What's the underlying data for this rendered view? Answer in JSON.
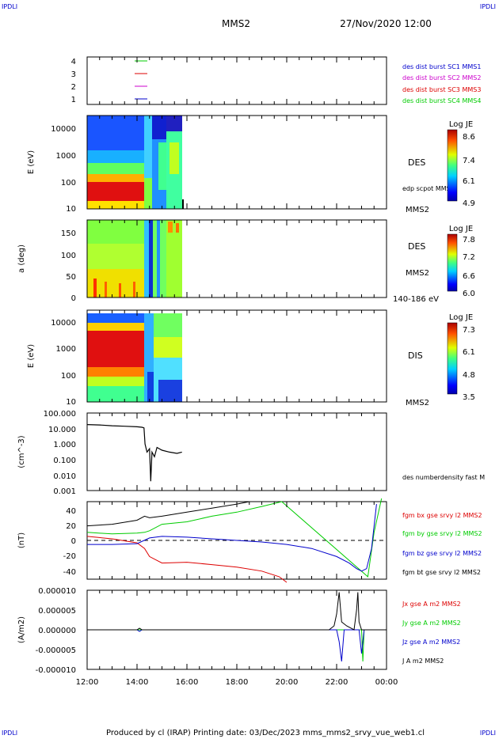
{
  "header": {
    "corner_left": "IPDLI",
    "corner_right": "IPDLI",
    "spacecraft": "MMS2",
    "datetime": "27/Nov/2020 12:00"
  },
  "footer": {
    "text": "Produced by cl (IRAP)   Printing date: 03/Dec/2023   mms_mms2_srvy_vue_web1.cl",
    "corner_left": "IPDLI",
    "corner_right": "IPDLI"
  },
  "time_axis": {
    "ticks": [
      "12:00",
      "14:00",
      "16:00",
      "18:00",
      "20:00",
      "22:00",
      "00:00"
    ],
    "range_hours": [
      12,
      24
    ]
  },
  "colors": {
    "black": "#000000",
    "red": "#dd0000",
    "green": "#00cc00",
    "blue": "#0000cc",
    "magenta": "#cc00cc"
  },
  "chart_data": [
    {
      "type": "line",
      "ylim": [
        0.5,
        4.5
      ],
      "ytick_labels": [
        "4",
        "3",
        "2",
        "1"
      ],
      "legend": [
        {
          "text": "des dist burst SC1 MMS1",
          "color": "#0000cc"
        },
        {
          "text": "des dist burst SC2 MMS2",
          "color": "#cc00cc"
        },
        {
          "text": "des dist burst SC3 MMS3",
          "color": "#dd0000"
        },
        {
          "text": "des dist burst SC4 MMS4",
          "color": "#00cc00"
        }
      ]
    },
    {
      "type": "heatmap",
      "ylabel": "E (eV)",
      "yscale": "log",
      "ylim": [
        10,
        30000
      ],
      "ytick_labels": [
        "10000",
        "1000",
        "100",
        "10"
      ],
      "label_right": "DES",
      "sublabel": "edp scpot MMS2",
      "spacecraft_label": "MMS2",
      "colorbar": {
        "title": "Log JE",
        "ticks": [
          "8.6",
          "7.4",
          "6.1",
          "4.9"
        ]
      },
      "data_end_hour": 15.85
    },
    {
      "type": "heatmap",
      "ylabel": "a (deg)",
      "ylim": [
        0,
        180
      ],
      "ytick_labels": [
        "150",
        "100",
        "50",
        "0"
      ],
      "label_right": "DES",
      "spacecraft_label": "MMS2",
      "energy_range": "140-186 eV",
      "colorbar": {
        "title": "Log JE",
        "ticks": [
          "7.8",
          "7.2",
          "6.6",
          "6.0"
        ]
      },
      "data_end_hour": 15.85
    },
    {
      "type": "heatmap",
      "ylabel": "E (eV)",
      "yscale": "log",
      "ylim": [
        10,
        30000
      ],
      "ytick_labels": [
        "10000",
        "1000",
        "100",
        "10"
      ],
      "label_right": "DIS",
      "spacecraft_label": "MMS2",
      "colorbar": {
        "title": "Log JE",
        "ticks": [
          "7.3",
          "6.1",
          "4.8",
          "3.5"
        ]
      },
      "data_end_hour": 15.85
    },
    {
      "type": "line",
      "ylabel": "(cm^-3)",
      "yscale": "log",
      "ylim": [
        0.001,
        100
      ],
      "ytick_labels": [
        "100.000",
        "10.000",
        "1.000",
        "0.100",
        "0.010",
        "0.001"
      ],
      "series": [
        {
          "name": "des numberdensity fast M",
          "color": "#000000",
          "x": [
            12.0,
            12.5,
            13.0,
            13.5,
            14.0,
            14.2,
            14.28,
            14.32,
            14.4,
            14.5,
            14.55,
            14.6,
            14.7,
            14.8,
            15.0,
            15.3,
            15.6,
            15.8
          ],
          "y": [
            18,
            17,
            15,
            14,
            13,
            12,
            11,
            1.0,
            0.3,
            0.5,
            0.004,
            0.3,
            0.15,
            0.6,
            0.4,
            0.3,
            0.25,
            0.3
          ]
        }
      ]
    },
    {
      "type": "line",
      "ylabel": "(nT)",
      "ylim": [
        -48,
        48
      ],
      "ytick_labels": [
        "40",
        "20",
        "0",
        "-20",
        "-40"
      ],
      "series": [
        {
          "name": "fgm bx gse srvy l2 MMS2",
          "color": "#dd0000",
          "x": [
            12.0,
            13.0,
            14.0,
            14.3,
            14.5,
            15.0,
            16.0,
            17.0,
            18.0,
            19.0,
            19.7,
            20.0
          ],
          "y": [
            5,
            2,
            -3,
            -10,
            -20,
            -28,
            -27,
            -30,
            -33,
            -38,
            -45,
            -52
          ]
        },
        {
          "name": "fgm by gse srvy l2 MMS2",
          "color": "#00cc00",
          "x": [
            12.0,
            13.0,
            14.0,
            14.3,
            14.5,
            15.0,
            16.0,
            17.0,
            18.0,
            19.0,
            19.8,
            23.25,
            23.5,
            23.8
          ],
          "y": [
            10,
            8,
            9,
            10,
            12,
            20,
            23,
            30,
            35,
            42,
            48,
            -45,
            10,
            52
          ]
        },
        {
          "name": "fgm bz gse srvy l2 MMS2",
          "color": "#0000cc",
          "x": [
            12.0,
            13.0,
            14.0,
            14.5,
            15.0,
            16.0,
            17.0,
            18.0,
            19.0,
            20.0,
            21.0,
            22.0,
            22.5,
            22.8,
            23.0,
            23.2,
            23.4,
            23.6
          ],
          "y": [
            -5,
            -5,
            -4,
            3,
            5,
            4,
            2,
            0,
            -2,
            -5,
            -10,
            -20,
            -28,
            -35,
            -38,
            -35,
            -10,
            45
          ]
        },
        {
          "name": "fgm bt gse srvy l2 MMS2",
          "color": "#000000",
          "x": [
            12.0,
            13.0,
            14.0,
            14.3,
            14.5,
            15.0,
            16.0,
            17.0,
            18.0,
            18.5
          ],
          "y": [
            18,
            20,
            25,
            30,
            28,
            30,
            35,
            40,
            45,
            48
          ]
        }
      ],
      "zero_line": true
    },
    {
      "type": "line",
      "ylabel": "(A/m2)",
      "ylim": [
        -1e-05,
        1e-05
      ],
      "ytick_labels": [
        "0.000010",
        "0.000005",
        "0.000000",
        "-0.000005",
        "-0.000010"
      ],
      "series": [
        {
          "name": "Jx gse A m2 MMS2",
          "color": "#dd0000",
          "x": [],
          "y": []
        },
        {
          "name": "Jy gse A m2 MMS2",
          "color": "#00cc00",
          "x": [
            12.0,
            23.0,
            23.05,
            23.1,
            24.0
          ],
          "y": [
            0,
            0,
            -8e-06,
            0,
            0
          ]
        },
        {
          "name": "Jz gse A m2 MMS2",
          "color": "#0000cc",
          "x": [
            12.0,
            14.0,
            14.1,
            14.2,
            22.0,
            22.1,
            22.2,
            22.3,
            22.9,
            23.0,
            23.1,
            24.0
          ],
          "y": [
            0,
            0,
            -4e-07,
            0,
            0,
            -3e-06,
            -8e-06,
            0,
            0,
            -6e-06,
            0,
            0
          ]
        },
        {
          "name": "J A m2 MMS2",
          "color": "#000000",
          "x": [
            12.0,
            14.0,
            14.1,
            14.2,
            21.7,
            21.9,
            22.0,
            22.1,
            22.2,
            22.4,
            22.7,
            22.8,
            22.85,
            22.9,
            23.0,
            24.0
          ],
          "y": [
            0,
            0,
            4e-07,
            0,
            0,
            1e-06,
            4e-06,
            9.5e-06,
            2e-06,
            1e-06,
            0,
            5e-06,
            9.5e-06,
            2e-06,
            0,
            0
          ]
        }
      ]
    }
  ]
}
